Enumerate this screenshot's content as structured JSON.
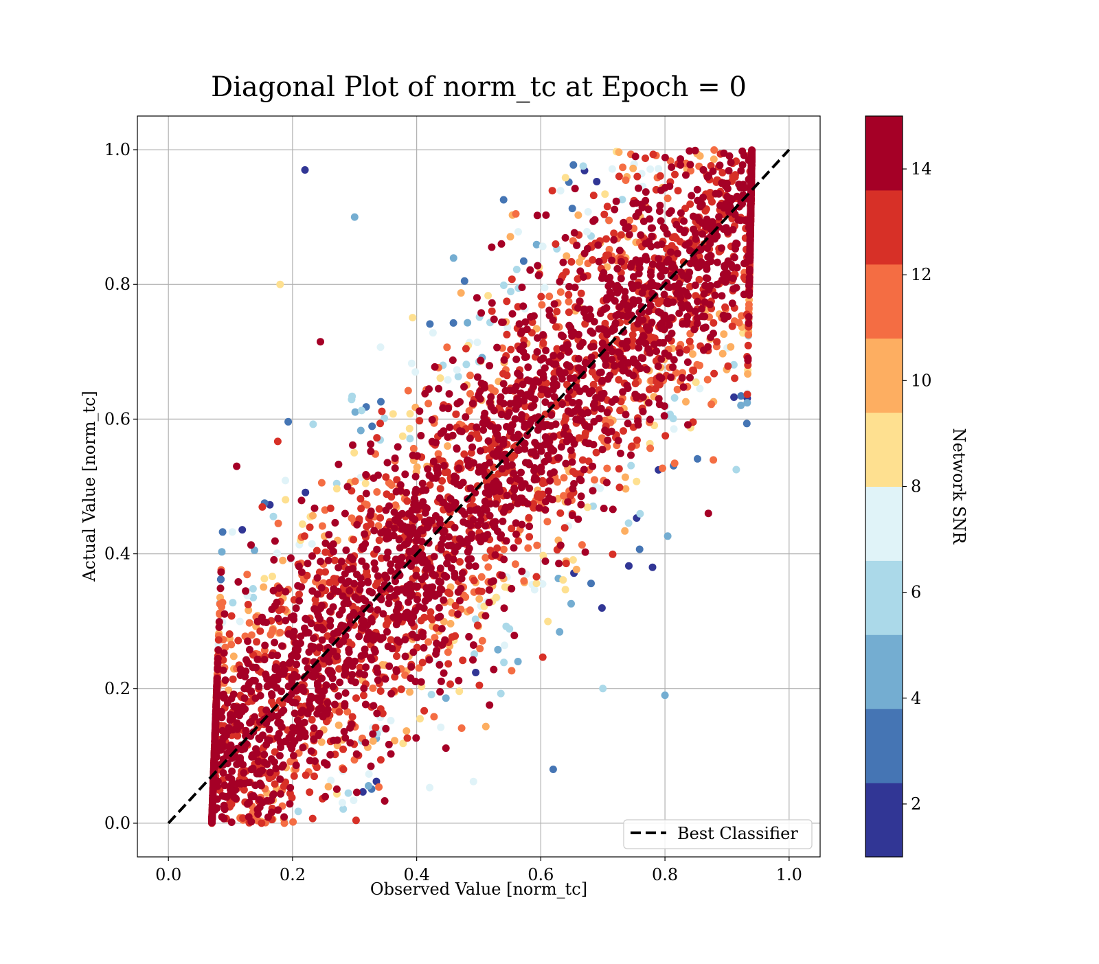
{
  "chart_data": {
    "type": "scatter",
    "title": "Diagonal Plot of norm_tc at Epoch = 0",
    "xlabel": "Observed Value [norm_tc]",
    "ylabel": "Actual Value [norm_tc]",
    "xlim": [
      -0.05,
      1.05
    ],
    "ylim": [
      -0.05,
      1.05
    ],
    "xticks": [
      0.0,
      0.2,
      0.4,
      0.6,
      0.8,
      1.0
    ],
    "yticks": [
      0.0,
      0.2,
      0.4,
      0.6,
      0.8,
      1.0
    ],
    "xtick_labels": [
      "0.0",
      "0.2",
      "0.4",
      "0.6",
      "0.8",
      "1.0"
    ],
    "ytick_labels": [
      "0.0",
      "0.2",
      "0.4",
      "0.6",
      "0.8",
      "1.0"
    ],
    "grid": true,
    "legend": {
      "placement": "lower right",
      "entries": [
        {
          "label": "Best Classifier",
          "style": "dashed",
          "color": "#000000"
        }
      ]
    },
    "reference_line": {
      "name": "Best Classifier",
      "x": [
        0.0,
        1.0
      ],
      "y": [
        0.0,
        1.0
      ],
      "style": "dashed",
      "color": "#000000"
    },
    "colorbar": {
      "label": "Network SNR",
      "min": 1,
      "max": 15,
      "ticks": [
        2,
        4,
        6,
        8,
        10,
        12,
        14
      ],
      "tick_labels": [
        "2",
        "4",
        "6",
        "8",
        "10",
        "12",
        "14"
      ],
      "band_colors": [
        "#313695",
        "#4575b4",
        "#74add1",
        "#abd9e9",
        "#e0f3f8",
        "#fee090",
        "#fdae61",
        "#f46d43",
        "#d73027",
        "#a50026"
      ]
    },
    "series": [
      {
        "type": "scatter",
        "color_by": "Network SNR",
        "description_of_density": "Points lie in a band around y = x (x spans roughly 0.06–0.94 over y 0–1); high SNR (dark red) near the diagonal, low SNR (blue/yellow) at the upper-left and lower-right edges of the band.",
        "sample_points": [
          {
            "x": 0.1,
            "y": 0.05,
            "snr": 15
          },
          {
            "x": 0.2,
            "y": 0.2,
            "snr": 15
          },
          {
            "x": 0.4,
            "y": 0.4,
            "snr": 15
          },
          {
            "x": 0.6,
            "y": 0.6,
            "snr": 15
          },
          {
            "x": 0.8,
            "y": 0.8,
            "snr": 15
          },
          {
            "x": 0.9,
            "y": 0.95,
            "snr": 15
          },
          {
            "x": 0.22,
            "y": 0.97,
            "snr": 2
          },
          {
            "x": 0.3,
            "y": 0.9,
            "snr": 5
          },
          {
            "x": 0.18,
            "y": 0.8,
            "snr": 8
          },
          {
            "x": 0.62,
            "y": 0.08,
            "snr": 3
          },
          {
            "x": 0.7,
            "y": 0.2,
            "snr": 6
          },
          {
            "x": 0.78,
            "y": 0.38,
            "snr": 2
          },
          {
            "x": 0.87,
            "y": 0.46,
            "snr": 15
          },
          {
            "x": 0.11,
            "y": 0.53,
            "snr": 15
          },
          {
            "x": 0.8,
            "y": 0.19,
            "snr": 4
          }
        ]
      }
    ]
  }
}
